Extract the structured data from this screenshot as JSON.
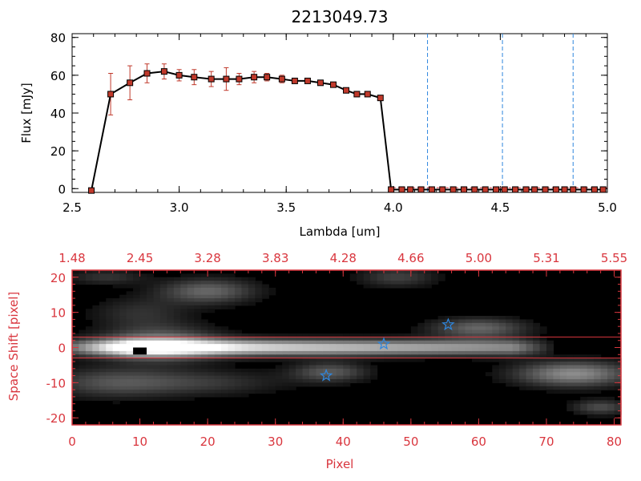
{
  "title": "2213049.73",
  "colors": {
    "data": "#c0392b",
    "line": "#000000",
    "marker_line": "#2e86de",
    "annot": "#d9363e",
    "star": "#2e86de"
  },
  "chart_data": [
    {
      "type": "line",
      "title": "2213049.73",
      "xlabel": "Lambda [um]",
      "ylabel": "Flux [mJy]",
      "xlim": [
        2.5,
        5.0
      ],
      "ylim": [
        -2,
        82
      ],
      "xticks": [
        "2.5",
        "3.0",
        "3.5",
        "4.0",
        "4.5",
        "5.0"
      ],
      "yticks": [
        "0",
        "20",
        "40",
        "60",
        "80"
      ],
      "vertical_lines": [
        4.16,
        4.51,
        4.84
      ],
      "series": [
        {
          "x": [
            2.59,
            2.68,
            2.77,
            2.85,
            2.93,
            3.0,
            3.07,
            3.15,
            3.22,
            3.28,
            3.35,
            3.41,
            3.48,
            3.54,
            3.6,
            3.66,
            3.72,
            3.78,
            3.83,
            3.88,
            3.94,
            3.99,
            4.04,
            4.08,
            4.13,
            4.18,
            4.23,
            4.28,
            4.33,
            4.38,
            4.43,
            4.48,
            4.52,
            4.57,
            4.62,
            4.66,
            4.71,
            4.76,
            4.8,
            4.84,
            4.89,
            4.94,
            4.98
          ],
          "y": [
            -1,
            50,
            56,
            61,
            62,
            60,
            59,
            58,
            58,
            58,
            59,
            59,
            58,
            57,
            57,
            56,
            55,
            52,
            50,
            50,
            48,
            -0.5,
            -0.5,
            -0.5,
            -0.5,
            -0.5,
            -0.5,
            -0.5,
            -0.5,
            -0.5,
            -0.5,
            -0.5,
            -0.5,
            -0.5,
            -0.5,
            -0.5,
            -0.5,
            -0.5,
            -0.5,
            -0.5,
            -0.5,
            -0.5,
            -0.5
          ],
          "yerr": [
            0,
            11,
            9,
            5,
            4,
            3,
            4,
            4,
            6,
            3,
            3,
            2,
            2,
            1,
            1,
            1,
            1,
            1,
            1,
            1,
            1,
            0,
            0,
            0,
            0,
            0,
            0,
            0,
            0,
            0,
            0,
            0,
            0,
            0,
            0,
            0,
            0,
            0,
            0,
            0,
            0,
            0,
            0
          ]
        }
      ]
    },
    {
      "type": "heatmap",
      "xlabel": "Pixel",
      "ylabel": "Space Shift [pixel]",
      "xlim": [
        0,
        81
      ],
      "ylim": [
        -22,
        22
      ],
      "xticks": [
        "0",
        "10",
        "20",
        "30",
        "40",
        "50",
        "60",
        "70",
        "80"
      ],
      "yticks": [
        "-20",
        "-10",
        "0",
        "10",
        "20"
      ],
      "top_axis_ticks": [
        "1.48",
        "2.45",
        "3.28",
        "3.83",
        "4.28",
        "4.66",
        "5.00",
        "5.31",
        "5.55"
      ],
      "horizontal_lines": [
        3,
        -3
      ],
      "star_markers": [
        {
          "x": 37.5,
          "y": -8
        },
        {
          "x": 46,
          "y": 1
        },
        {
          "x": 55.5,
          "y": 6.5
        }
      ]
    }
  ]
}
